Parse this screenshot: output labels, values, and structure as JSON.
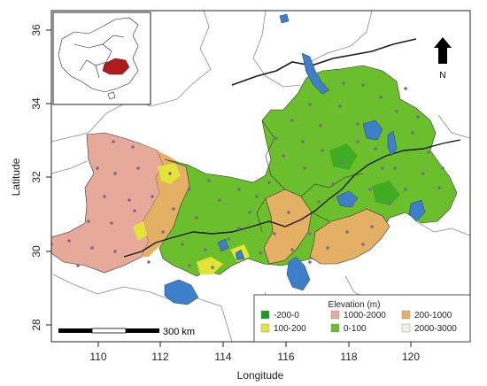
{
  "axes": {
    "xlabel": "Longitude",
    "ylabel": "Latitude",
    "x_ticks": [
      "110",
      "112",
      "114",
      "116",
      "118",
      "120"
    ],
    "y_ticks": [
      "28",
      "30",
      "32",
      "34",
      "36"
    ]
  },
  "legend": {
    "title": "Elevation (m)",
    "items": [
      {
        "label": "-200-0",
        "color": "#1f9a1f"
      },
      {
        "label": "100-200",
        "color": "#e4e33a"
      },
      {
        "label": "1000-2000",
        "color": "#e7a99a"
      },
      {
        "label": "0-100",
        "color": "#6cbf2c"
      },
      {
        "label": "200-1000",
        "color": "#e4b063"
      },
      {
        "label": "2000-3000",
        "color": "#f2efe8"
      }
    ]
  },
  "scale_bar": {
    "label": "300 km"
  },
  "north_arrow": {
    "label": "N",
    "icon": "north-arrow-icon"
  },
  "inset": {
    "icon": "china-inset-map-icon",
    "highlight_color": "#b11a1a"
  },
  "colors": {
    "water": "#3d7fc8",
    "station": "#7d6b8f",
    "river": "#1a1a1a",
    "boundary": "#555555"
  }
}
